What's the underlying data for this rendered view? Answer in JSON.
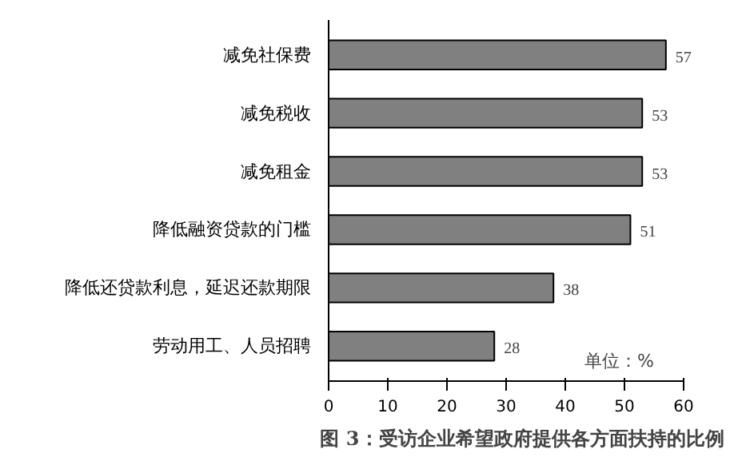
{
  "chart_data": {
    "type": "bar",
    "orientation": "horizontal",
    "title": "图 3：受访企业希望政府提供各方面扶持的比例",
    "categories": [
      "减免社保费",
      "减免税收",
      "减免租金",
      "降低融资贷款的门槛",
      "降低还贷款利息，延迟还款期限",
      "劳动用工、人员招聘"
    ],
    "values": [
      57,
      53,
      53,
      51,
      38,
      28
    ],
    "color": "#808080",
    "xlim": [
      0,
      60
    ],
    "xticks": [
      0,
      10,
      20,
      30,
      40,
      50,
      60
    ],
    "grid": false,
    "data_labels": true,
    "annotations": [
      "单位：%"
    ]
  }
}
